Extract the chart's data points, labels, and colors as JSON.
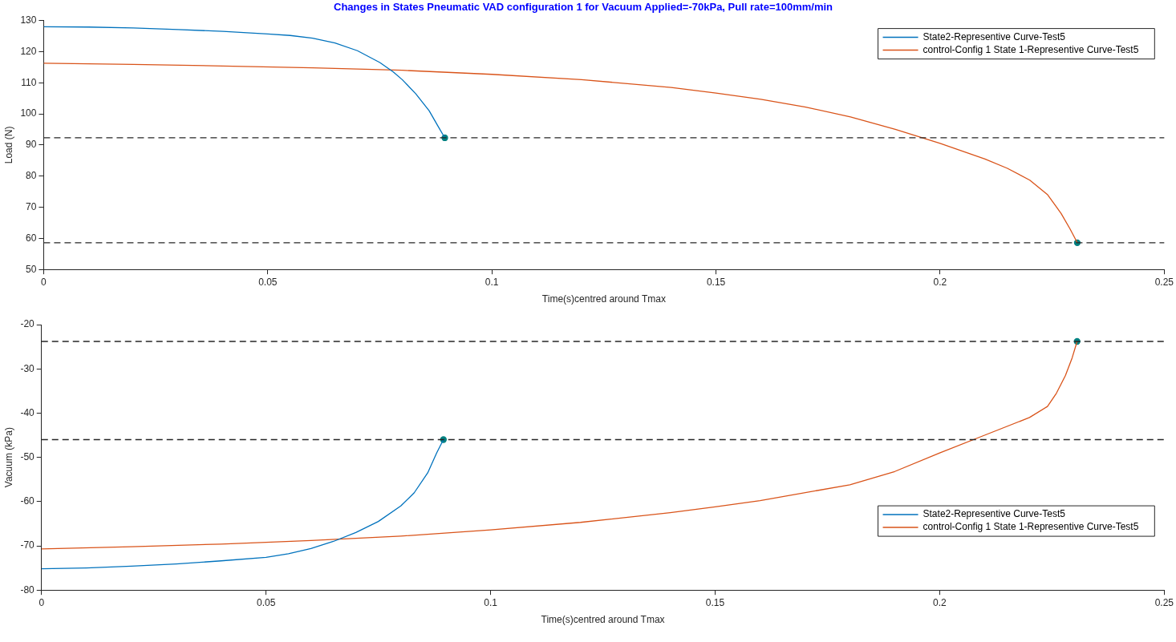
{
  "chart_data": [
    {
      "type": "line",
      "title": "Changes in States Pneumatic VAD configuration 1 for Vacuum Applied=-70kPa, Pull rate=100mm/min",
      "xlabel": "Time(s)centred around Tmax",
      "ylabel": "Load (N)",
      "xlim": [
        0,
        0.25
      ],
      "xticks": [
        0,
        0.05,
        0.1,
        0.15,
        0.2,
        0.25
      ],
      "ylim": [
        50,
        130
      ],
      "yticks": [
        50,
        60,
        70,
        80,
        90,
        100,
        110,
        120,
        130
      ],
      "grid": false,
      "legend": "top right",
      "series": [
        {
          "name": "State2-Representive Curve-Test5",
          "color": "#0072bd",
          "marker": "none",
          "x": [
            0,
            0.01,
            0.02,
            0.03,
            0.04,
            0.05,
            0.055,
            0.06,
            0.065,
            0.07,
            0.075,
            0.078,
            0.08,
            0.083,
            0.086,
            0.088,
            0.0895
          ],
          "values": [
            128,
            127.9,
            127.6,
            127.1,
            126.5,
            125.7,
            125.2,
            124.3,
            122.8,
            120.3,
            116.5,
            113.5,
            111,
            106.5,
            101,
            96,
            92.3
          ]
        },
        {
          "name": "control-Config 1 State 1-Representive Curve-Test5",
          "color": "#d95319",
          "marker": "none",
          "x": [
            0,
            0.02,
            0.04,
            0.06,
            0.08,
            0.1,
            0.12,
            0.14,
            0.15,
            0.16,
            0.17,
            0.18,
            0.19,
            0.2,
            0.21,
            0.215,
            0.22,
            0.224,
            0.227,
            0.229,
            0.2306
          ],
          "values": [
            116.3,
            115.9,
            115.4,
            114.8,
            114,
            112.7,
            111,
            108.5,
            106.7,
            104.7,
            102.2,
            99,
            95,
            90.5,
            85.5,
            82.5,
            78.7,
            74,
            68,
            63,
            58.6
          ]
        },
        {
          "type": "scatter",
          "color": "#008080",
          "marker": "circle",
          "x": [
            0.0895,
            0.2306
          ],
          "values": [
            92.3,
            58.6
          ]
        }
      ],
      "ref_lines": [
        {
          "axis": "y",
          "value": 92.3,
          "color": "#262626",
          "line_style": "dashed"
        },
        {
          "axis": "y",
          "value": 58.6,
          "color": "#262626",
          "line_style": "dashed"
        }
      ]
    },
    {
      "type": "line",
      "xlabel": "Time(s)centred around Tmax",
      "ylabel": "Vacuum (kPa)",
      "xlim": [
        0,
        0.25
      ],
      "xticks": [
        0,
        0.05,
        0.1,
        0.15,
        0.2,
        0.25
      ],
      "ylim": [
        -80,
        -20
      ],
      "yticks": [
        -80,
        -70,
        -60,
        -50,
        -40,
        -30,
        -20
      ],
      "grid": false,
      "legend": "right",
      "series": [
        {
          "name": "State2-Representive Curve-Test5",
          "color": "#0072bd",
          "marker": "none",
          "x": [
            0,
            0.01,
            0.02,
            0.03,
            0.04,
            0.05,
            0.055,
            0.06,
            0.065,
            0.07,
            0.075,
            0.08,
            0.083,
            0.086,
            0.088,
            0.0895
          ],
          "values": [
            -75.2,
            -75,
            -74.6,
            -74.1,
            -73.4,
            -72.6,
            -71.8,
            -70.6,
            -69,
            -67,
            -64.5,
            -61,
            -58,
            -53.5,
            -49,
            -46
          ]
        },
        {
          "name": "control-Config 1 State 1-Representive Curve-Test5",
          "color": "#d95319",
          "marker": "none",
          "x": [
            0,
            0.02,
            0.04,
            0.06,
            0.08,
            0.1,
            0.12,
            0.14,
            0.15,
            0.16,
            0.18,
            0.19,
            0.2,
            0.21,
            0.22,
            0.224,
            0.226,
            0.228,
            0.2295,
            0.2306
          ],
          "values": [
            -70.7,
            -70.2,
            -69.6,
            -68.8,
            -67.8,
            -66.4,
            -64.7,
            -62.5,
            -61.2,
            -59.8,
            -56.2,
            -53.2,
            -49,
            -45,
            -41,
            -38.5,
            -35.5,
            -31.5,
            -27.5,
            -23.8
          ]
        },
        {
          "type": "scatter",
          "color": "#008080",
          "marker": "circle",
          "x": [
            0.0895,
            0.2306
          ],
          "values": [
            -46,
            -23.8
          ]
        }
      ],
      "ref_lines": [
        {
          "axis": "y",
          "value": -23.8,
          "color": "#262626",
          "line_style": "dashed"
        },
        {
          "axis": "y",
          "value": -46,
          "color": "#262626",
          "line_style": "dashed"
        }
      ]
    }
  ]
}
